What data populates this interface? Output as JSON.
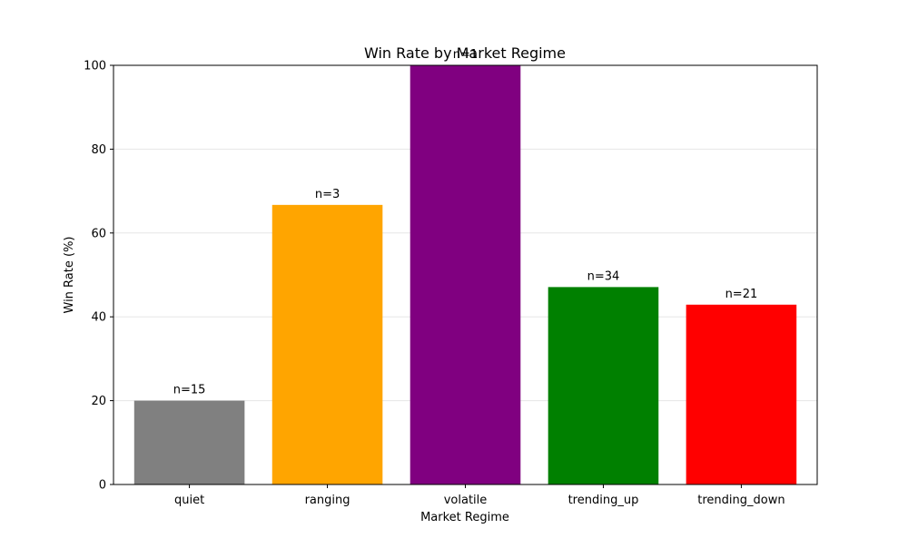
{
  "chart_data": {
    "type": "bar",
    "title": "Win Rate by Market Regime",
    "xlabel": "Market Regime",
    "ylabel": "Win Rate (%)",
    "categories": [
      "quiet",
      "ranging",
      "volatile",
      "trending_up",
      "trending_down"
    ],
    "values": [
      20.0,
      66.7,
      100.0,
      47.1,
      42.9
    ],
    "bar_labels": [
      "n=15",
      "n=3",
      "n=1",
      "n=34",
      "n=21"
    ],
    "colors": [
      "#808080",
      "#FFA500",
      "#800080",
      "#008000",
      "#FF0000"
    ],
    "ylim": [
      0,
      100
    ],
    "yticks": [
      0,
      20,
      40,
      60,
      80,
      100
    ],
    "grid": "horizontal",
    "legend": "none"
  }
}
